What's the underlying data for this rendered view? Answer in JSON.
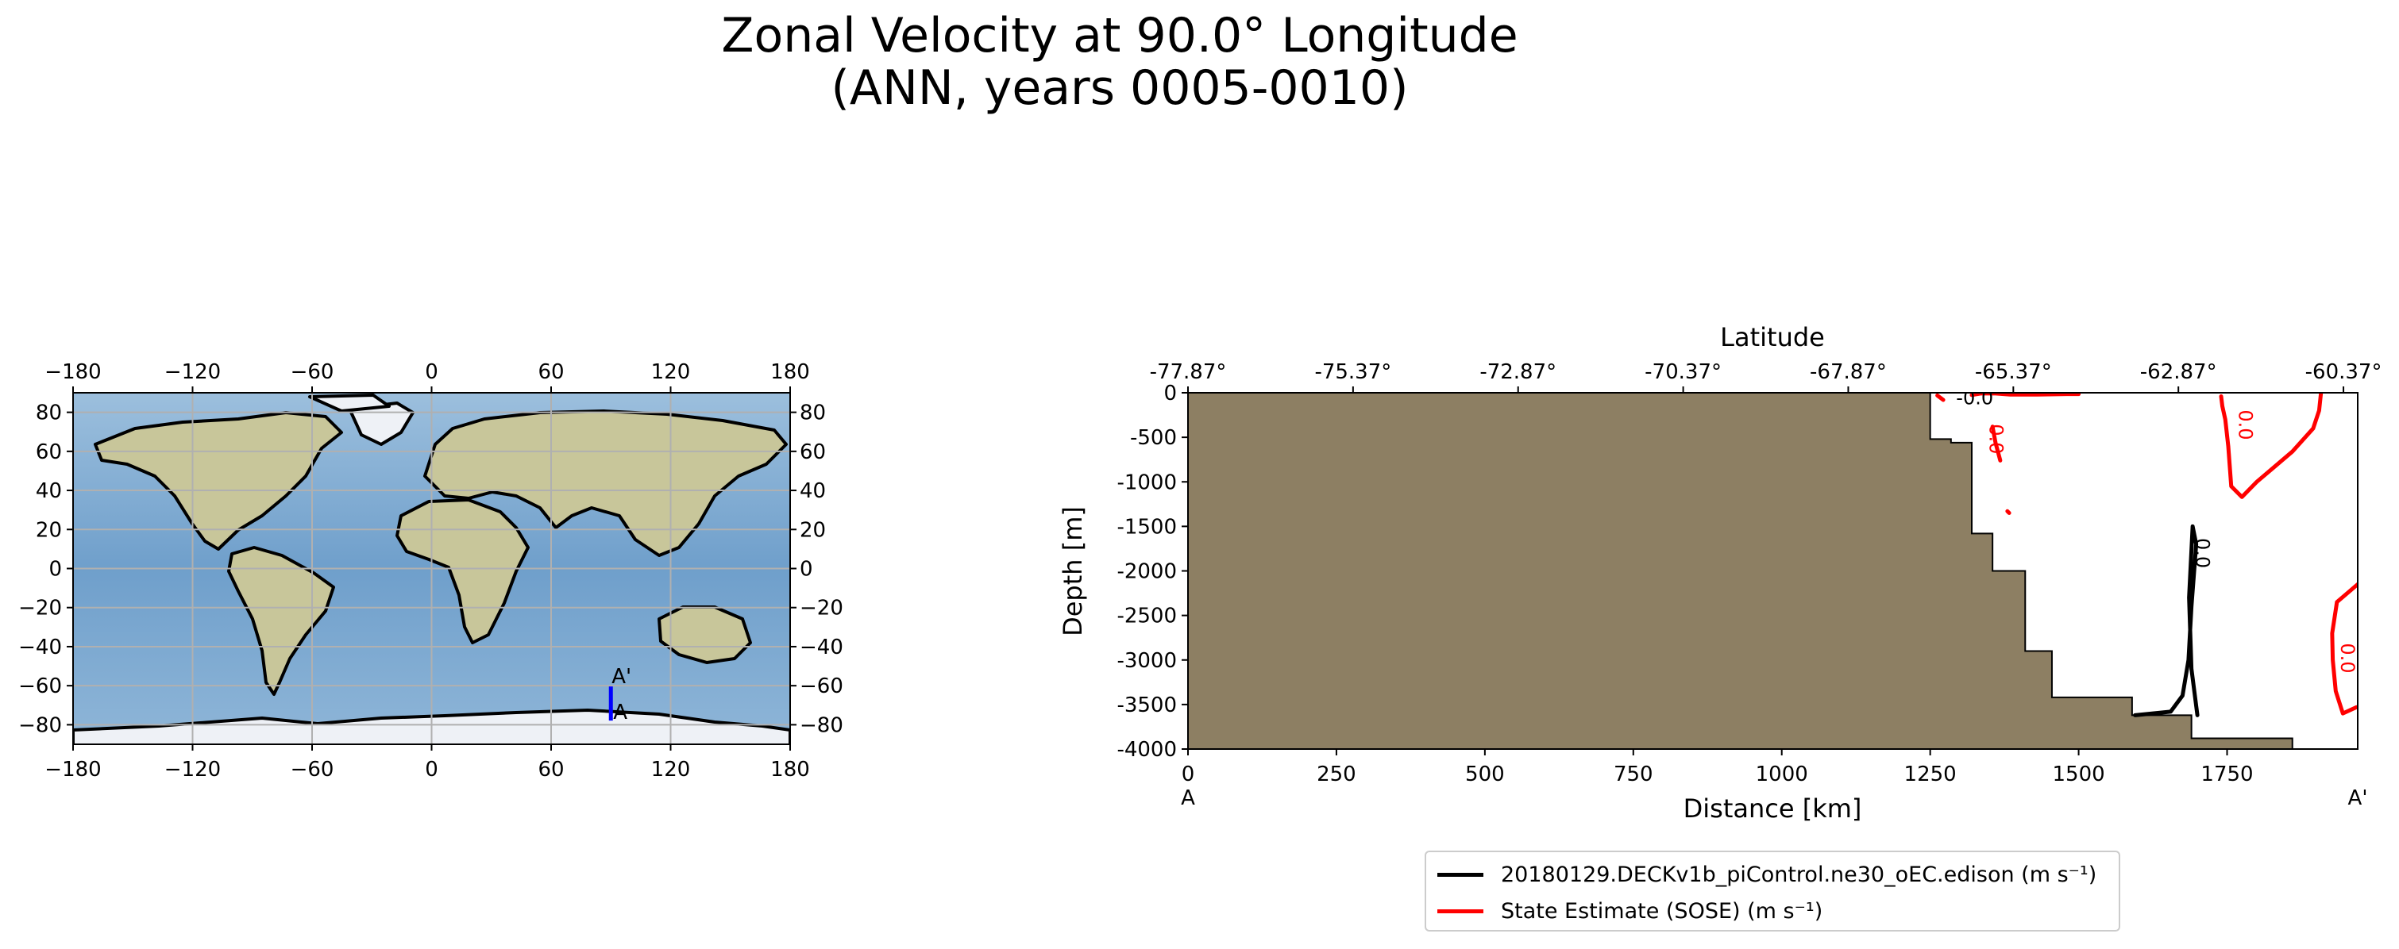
{
  "title_line1": "Zonal Velocity at 90.0° Longitude",
  "title_line2": "(ANN, years 0005-0010)",
  "colors": {
    "terrain": "#8d7f63",
    "model": "#000000",
    "obs": "#ff0000",
    "transect": "#0000ff",
    "ocean": "#7aa9cf",
    "land": "#c9c79a",
    "ice": "#eef1f6"
  },
  "chart_data": [
    {
      "type": "map",
      "x_ticks": [
        "−180",
        "−120",
        "−60",
        "0",
        "60",
        "120",
        "180"
      ],
      "y_ticks": [
        "80",
        "60",
        "40",
        "20",
        "0",
        "−20",
        "−40",
        "−60",
        "−80"
      ],
      "x_tick_values": [
        -180,
        -120,
        -60,
        0,
        60,
        120,
        180
      ],
      "y_tick_values": [
        80,
        60,
        40,
        20,
        0,
        -20,
        -40,
        -60,
        -80
      ],
      "xlim": [
        -180,
        180
      ],
      "ylim": [
        -90,
        90
      ],
      "grid": true,
      "transect": {
        "longitude": 90.0,
        "lat_start": -77.87,
        "lat_end": -60.37,
        "start_label": "A",
        "end_label": "A'"
      }
    },
    {
      "type": "line",
      "xlabel": "Distance [km]",
      "ylabel": "Depth [m]",
      "top_xlabel": "Latitude",
      "xlim": [
        0,
        1970
      ],
      "ylim": [
        -4000,
        0
      ],
      "x_ticks": [
        0,
        250,
        500,
        750,
        1000,
        1250,
        1500,
        1750
      ],
      "y_ticks": [
        0,
        -500,
        -1000,
        -1500,
        -2000,
        -2500,
        -3000,
        -3500,
        -4000
      ],
      "top_tick_values": [
        0,
        278,
        556,
        834,
        1112,
        1390,
        1668,
        1946
      ],
      "top_tick_labels": [
        "-77.87°",
        "-75.37°",
        "-72.87°",
        "-70.37°",
        "-67.87°",
        "-65.37°",
        "-62.87°",
        "-60.37°"
      ],
      "start_label": "A",
      "end_label": "A'",
      "bathymetry": {
        "distance": [
          1250,
          1250,
          1285,
          1285,
          1320,
          1320,
          1355,
          1355,
          1410,
          1410,
          1455,
          1455,
          1590,
          1590,
          1690,
          1690,
          1860,
          1860,
          1970
        ],
        "depth": [
          0,
          -520,
          -520,
          -560,
          -560,
          -1580,
          -1580,
          -2000,
          -2000,
          -2900,
          -2900,
          -3420,
          -3420,
          -3620,
          -3620,
          -3880,
          -3880,
          -4000,
          -4000
        ]
      },
      "series": [
        {
          "name": "20180129.DECKv1b_piControl.ne30_oEC.edison (m s⁻¹)",
          "contours": [
            {
              "x": [
                1595,
                1625,
                1655,
                1675,
                1685,
                1690,
                1698,
                1692,
                1686,
                1690,
                1700
              ],
              "y": [
                -3620,
                -3600,
                -3580,
                -3400,
                -3000,
                -2400,
                -1700,
                -1500,
                -2300,
                -3100,
                -3620
              ]
            }
          ],
          "labels": [
            {
              "text": "0.0",
              "x": 1698,
              "y": -1800
            }
          ]
        },
        {
          "name": "State Estimate (SOSE) (m s⁻¹)",
          "contours": [
            {
              "x": [
                1320,
                1335,
                1360,
                1385,
                1430,
                1480,
                1500
              ],
              "y": [
                -25,
                -8,
                -8,
                -20,
                -20,
                -15,
                -15
              ]
            },
            {
              "x": [
                1262,
                1272
              ],
              "y": [
                -30,
                -80
              ]
            },
            {
              "x": [
                1355,
                1360,
                1368
              ],
              "y": [
                -380,
                -560,
                -760
              ]
            },
            {
              "x": [
                1380,
                1383
              ],
              "y": [
                -1330,
                -1350
              ]
            },
            {
              "x": [
                1740,
                1742,
                1747,
                1752,
                1757,
                1775,
                1800,
                1830,
                1860,
                1895,
                1905,
                1908
              ],
              "y": [
                -40,
                -150,
                -300,
                -600,
                -1050,
                -1170,
                -1000,
                -830,
                -660,
                -400,
                -200,
                -10
              ]
            },
            {
              "x": [
                1970,
                1935,
                1927,
                1928,
                1933,
                1945,
                1968
              ],
              "y": [
                -2150,
                -2350,
                -2700,
                -3000,
                -3350,
                -3600,
                -3530
              ]
            }
          ],
          "labels": [
            {
              "text": "-0.0",
              "x": 1325,
              "y": -130
            },
            {
              "text": "0.0",
              "x": 1350,
              "y": -520
            },
            {
              "text": "0.0",
              "x": 1770,
              "y": -360
            },
            {
              "text": "0.0",
              "x": 1942,
              "y": -2980
            }
          ]
        }
      ]
    }
  ]
}
